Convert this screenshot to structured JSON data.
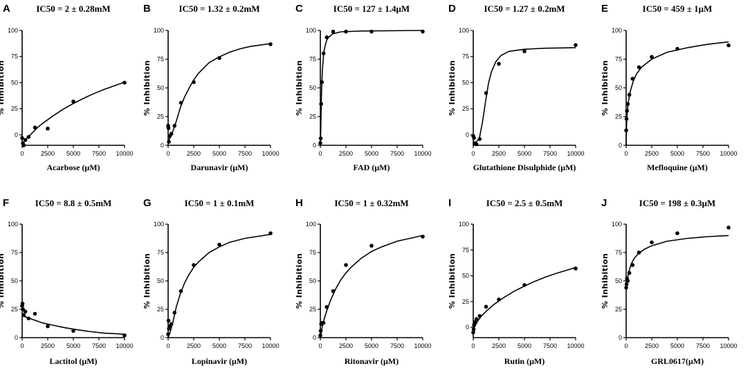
{
  "chart_data": [
    {
      "panel": "A",
      "type": "scatter",
      "title": "IC50 = 2 ± 0.28mM",
      "xlabel": "Acarbose (μM)",
      "ylabel": "% Inhibition",
      "xlim": [
        0,
        10000
      ],
      "ylim": [
        -10,
        100
      ],
      "xticks": [
        "0",
        "2500",
        "5000",
        "7500",
        "10000"
      ],
      "yticks": [
        "0",
        "25",
        "50",
        "75",
        "100"
      ],
      "points": [
        [
          0,
          -3
        ],
        [
          78,
          -8
        ],
        [
          156,
          -10
        ],
        [
          312,
          -5
        ],
        [
          625,
          -2
        ],
        [
          1250,
          7
        ],
        [
          2500,
          6
        ],
        [
          5000,
          32
        ],
        [
          10000,
          50
        ]
      ],
      "fit": [
        [
          0,
          -3
        ],
        [
          300,
          -4.5
        ],
        [
          600,
          -2
        ],
        [
          1000,
          2
        ],
        [
          1500,
          7
        ],
        [
          2000,
          11
        ],
        [
          3000,
          18
        ],
        [
          4000,
          24.5
        ],
        [
          5000,
          30
        ],
        [
          6000,
          35
        ],
        [
          7000,
          39.5
        ],
        [
          8000,
          43.5
        ],
        [
          9000,
          47
        ],
        [
          10000,
          50.5
        ]
      ]
    },
    {
      "panel": "B",
      "type": "scatter",
      "title": "IC50 = 1.32 ± 0.2mM",
      "xlabel": "Darunavir (μM)",
      "ylabel": "% Inhibition",
      "xlim": [
        0,
        10000
      ],
      "ylim": [
        0,
        100
      ],
      "xticks": [
        "0",
        "2500",
        "5000",
        "7500",
        "10000"
      ],
      "yticks": [
        "0",
        "25",
        "50",
        "75",
        "100"
      ],
      "points": [
        [
          0,
          17
        ],
        [
          39,
          15
        ],
        [
          78,
          3
        ],
        [
          156,
          8
        ],
        [
          312,
          10
        ],
        [
          625,
          17
        ],
        [
          1250,
          37
        ],
        [
          2500,
          55
        ],
        [
          5000,
          76
        ],
        [
          10000,
          88
        ]
      ],
      "fit": [
        [
          0,
          3
        ],
        [
          200,
          7
        ],
        [
          500,
          13
        ],
        [
          800,
          21
        ],
        [
          1200,
          33
        ],
        [
          1600,
          42
        ],
        [
          2000,
          49
        ],
        [
          2500,
          57
        ],
        [
          3000,
          63
        ],
        [
          4000,
          72
        ],
        [
          5000,
          77
        ],
        [
          6000,
          81
        ],
        [
          7000,
          84
        ],
        [
          8000,
          86
        ],
        [
          10000,
          88.5
        ]
      ]
    },
    {
      "panel": "C",
      "type": "scatter",
      "title": "IC50 = 127 ± 1.4μM",
      "xlabel": "FAD (μM)",
      "ylabel": "% Inhibition",
      "xlim": [
        0,
        10000
      ],
      "ylim": [
        0,
        100
      ],
      "xticks": [
        "0",
        "2500",
        "5000",
        "7500",
        "10000"
      ],
      "yticks": [
        "0",
        "25",
        "50",
        "75",
        "100"
      ],
      "points": [
        [
          0,
          2
        ],
        [
          39,
          6
        ],
        [
          78,
          36
        ],
        [
          156,
          55
        ],
        [
          312,
          80
        ],
        [
          625,
          94
        ],
        [
          1250,
          99
        ],
        [
          2500,
          99
        ],
        [
          5000,
          99
        ],
        [
          10000,
          99
        ]
      ],
      "fit": [
        [
          0,
          0
        ],
        [
          50,
          15
        ],
        [
          100,
          40
        ],
        [
          150,
          55
        ],
        [
          200,
          66
        ],
        [
          300,
          77
        ],
        [
          400,
          84
        ],
        [
          600,
          91
        ],
        [
          800,
          94
        ],
        [
          1200,
          97
        ],
        [
          2000,
          98.8
        ],
        [
          4000,
          99.5
        ],
        [
          10000,
          100
        ]
      ]
    },
    {
      "panel": "D",
      "type": "scatter",
      "title": "IC50 = 1.27 ± 0.2mM",
      "xlabel": "Glutathione Disulphide (μM)",
      "ylabel": "% Inhibition",
      "xlim": [
        0,
        10000
      ],
      "ylim": [
        -10,
        100
      ],
      "xticks": [
        "0",
        "2500",
        "5000",
        "7500",
        "10000"
      ],
      "yticks": [
        "0",
        "25",
        "50",
        "75",
        "100"
      ],
      "points": [
        [
          0,
          -1
        ],
        [
          78,
          -3
        ],
        [
          156,
          -8
        ],
        [
          312,
          -9
        ],
        [
          625,
          -4
        ],
        [
          1250,
          40
        ],
        [
          2500,
          68
        ],
        [
          5000,
          80
        ],
        [
          10000,
          86
        ]
      ],
      "fit": [
        [
          0,
          -8
        ],
        [
          300,
          -7
        ],
        [
          600,
          -3
        ],
        [
          900,
          12
        ],
        [
          1200,
          32
        ],
        [
          1500,
          50
        ],
        [
          1800,
          61
        ],
        [
          2200,
          70
        ],
        [
          2700,
          76
        ],
        [
          3500,
          80
        ],
        [
          5000,
          82
        ],
        [
          7000,
          83
        ],
        [
          10000,
          83.5
        ]
      ]
    },
    {
      "panel": "E",
      "type": "scatter",
      "title": "IC50 = 459 ± 1μM",
      "xlabel": "Mefloquine (μM)",
      "ylabel": "% Inhibition",
      "xlim": [
        0,
        10000
      ],
      "ylim": [
        0,
        100
      ],
      "xticks": [
        "0",
        "2500",
        "5000",
        "7500",
        "10000"
      ],
      "yticks": [
        "0",
        "25",
        "50",
        "75",
        "100"
      ],
      "points": [
        [
          0,
          13
        ],
        [
          39,
          23
        ],
        [
          78,
          30
        ],
        [
          156,
          36
        ],
        [
          312,
          44
        ],
        [
          625,
          58
        ],
        [
          1250,
          68
        ],
        [
          2500,
          77
        ],
        [
          5000,
          84
        ],
        [
          10000,
          87
        ]
      ],
      "fit": [
        [
          0,
          0
        ],
        [
          20,
          10
        ],
        [
          50,
          20
        ],
        [
          100,
          28
        ],
        [
          200,
          37
        ],
        [
          400,
          47
        ],
        [
          700,
          56
        ],
        [
          1000,
          62
        ],
        [
          1500,
          68
        ],
        [
          2500,
          75
        ],
        [
          4000,
          81
        ],
        [
          6000,
          85
        ],
        [
          8000,
          88
        ],
        [
          10000,
          90
        ]
      ]
    },
    {
      "panel": "F",
      "type": "scatter",
      "title": "IC50 = 8.8 ± 0.5mM",
      "xlabel": "Lactitol (μM)",
      "ylabel": "% Inhibition",
      "xlim": [
        0,
        10000
      ],
      "ylim": [
        0,
        100
      ],
      "xticks": [
        "0",
        "2500",
        "5000",
        "7500",
        "10000"
      ],
      "yticks": [
        "0",
        "25",
        "50",
        "75",
        "100"
      ],
      "points": [
        [
          0,
          28
        ],
        [
          39,
          30
        ],
        [
          78,
          25
        ],
        [
          156,
          20
        ],
        [
          312,
          23
        ],
        [
          625,
          17
        ],
        [
          1250,
          21
        ],
        [
          2500,
          10
        ],
        [
          5000,
          6
        ],
        [
          10000,
          2
        ]
      ],
      "fit": [
        [
          0,
          19
        ],
        [
          300,
          18.5
        ],
        [
          700,
          17
        ],
        [
          1200,
          15.5
        ],
        [
          2000,
          13
        ],
        [
          3000,
          11
        ],
        [
          4000,
          9
        ],
        [
          5000,
          7.5
        ],
        [
          6500,
          5.5
        ],
        [
          8000,
          4
        ],
        [
          10000,
          3
        ]
      ]
    },
    {
      "panel": "G",
      "type": "scatter",
      "title": "IC50 = 1 ± 0.1mM",
      "xlabel": "Lopinavir (μM)",
      "ylabel": "% Inhibition",
      "xlim": [
        0,
        10000
      ],
      "ylim": [
        0,
        100
      ],
      "xticks": [
        "0",
        "2500",
        "5000",
        "7500",
        "10000"
      ],
      "yticks": [
        "0",
        "25",
        "50",
        "75",
        "100"
      ],
      "points": [
        [
          0,
          3
        ],
        [
          39,
          15
        ],
        [
          78,
          8
        ],
        [
          156,
          10
        ],
        [
          312,
          12
        ],
        [
          625,
          22
        ],
        [
          1250,
          41
        ],
        [
          2500,
          64
        ],
        [
          5000,
          82
        ],
        [
          10000,
          92
        ]
      ],
      "fit": [
        [
          0,
          0
        ],
        [
          200,
          5
        ],
        [
          500,
          15
        ],
        [
          800,
          27
        ],
        [
          1200,
          39
        ],
        [
          1600,
          48
        ],
        [
          2000,
          55
        ],
        [
          2500,
          62
        ],
        [
          3000,
          67
        ],
        [
          4000,
          75
        ],
        [
          5000,
          80
        ],
        [
          6000,
          84
        ],
        [
          7500,
          87.5
        ],
        [
          10000,
          91
        ]
      ]
    },
    {
      "panel": "H",
      "type": "scatter",
      "title": "IC50 = 1 ± 0.32mM",
      "xlabel": "Ritonavir (μM)",
      "ylabel": "% Inhibition",
      "xlim": [
        0,
        10000
      ],
      "ylim": [
        0,
        100
      ],
      "xticks": [
        "0",
        "2500",
        "5000",
        "7500",
        "10000"
      ],
      "yticks": [
        "0",
        "25",
        "50",
        "75",
        "100"
      ],
      "points": [
        [
          0,
          2
        ],
        [
          39,
          6
        ],
        [
          78,
          12
        ],
        [
          156,
          13
        ],
        [
          312,
          13
        ],
        [
          625,
          27
        ],
        [
          1250,
          41
        ],
        [
          2500,
          64
        ],
        [
          5000,
          81
        ],
        [
          10000,
          89
        ]
      ],
      "fit": [
        [
          0,
          0
        ],
        [
          100,
          6
        ],
        [
          300,
          14
        ],
        [
          600,
          23
        ],
        [
          1000,
          33
        ],
        [
          1500,
          43
        ],
        [
          2000,
          51
        ],
        [
          2500,
          57
        ],
        [
          3000,
          62
        ],
        [
          4000,
          70
        ],
        [
          5000,
          76
        ],
        [
          6000,
          80
        ],
        [
          7500,
          85
        ],
        [
          10000,
          90
        ]
      ]
    },
    {
      "panel": "I",
      "type": "scatter",
      "title": "IC50 = 2.5 ± 0.5mM",
      "xlabel": "Rutin (μM)",
      "ylabel": "% Inhibition",
      "xlim": [
        0,
        10000
      ],
      "ylim": [
        -10,
        100
      ],
      "xticks": [
        "0",
        "2500",
        "5000",
        "7500",
        "10000"
      ],
      "yticks": [
        "0",
        "25",
        "50",
        "75",
        "100"
      ],
      "points": [
        [
          0,
          -5
        ],
        [
          39,
          -2
        ],
        [
          78,
          2
        ],
        [
          156,
          5
        ],
        [
          312,
          8
        ],
        [
          625,
          11
        ],
        [
          1250,
          20
        ],
        [
          2500,
          27
        ],
        [
          5000,
          41
        ],
        [
          10000,
          57
        ]
      ],
      "fit": [
        [
          0,
          -2
        ],
        [
          200,
          2
        ],
        [
          500,
          7
        ],
        [
          800,
          11
        ],
        [
          1200,
          15
        ],
        [
          2000,
          22
        ],
        [
          3000,
          29
        ],
        [
          4000,
          35
        ],
        [
          5000,
          40
        ],
        [
          6000,
          44.5
        ],
        [
          7000,
          48.5
        ],
        [
          8000,
          52
        ],
        [
          9000,
          55
        ],
        [
          10000,
          58
        ]
      ]
    },
    {
      "panel": "J",
      "type": "scatter",
      "title": "IC50 = 198 ± 0.3μM",
      "xlabel": "GRL0617(μM)",
      "ylabel": "% Inhibition",
      "xlim": [
        0,
        10000
      ],
      "ylim": [
        0,
        100
      ],
      "xticks": [
        "0",
        "2500",
        "5000",
        "7500",
        "10000"
      ],
      "yticks": [
        "0",
        "25",
        "50",
        "75",
        "100"
      ],
      "points": [
        [
          0,
          44
        ],
        [
          39,
          47
        ],
        [
          78,
          52
        ],
        [
          156,
          50
        ],
        [
          312,
          57
        ],
        [
          625,
          64
        ],
        [
          1250,
          75
        ],
        [
          2500,
          84
        ],
        [
          5000,
          92
        ],
        [
          10000,
          97
        ]
      ],
      "fit": [
        [
          0,
          44
        ],
        [
          100,
          51
        ],
        [
          250,
          58
        ],
        [
          500,
          65
        ],
        [
          800,
          70
        ],
        [
          1200,
          74
        ],
        [
          1800,
          78
        ],
        [
          2500,
          81
        ],
        [
          4000,
          85
        ],
        [
          6000,
          87.5
        ],
        [
          8000,
          89
        ],
        [
          10000,
          90
        ]
      ]
    }
  ]
}
